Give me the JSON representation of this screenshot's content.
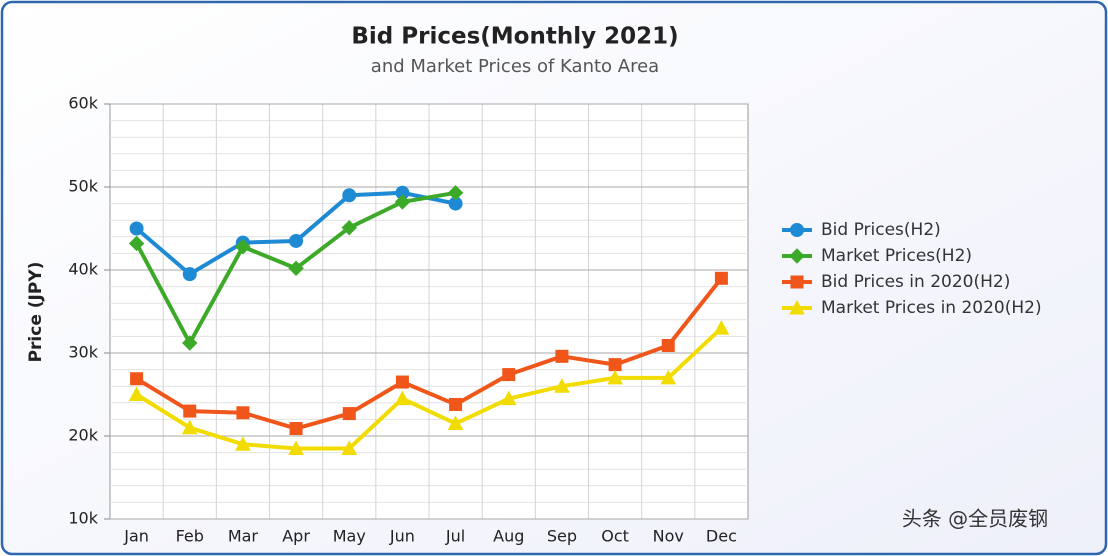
{
  "chart_data": {
    "type": "line",
    "title": "Bid Prices(Monthly 2021)",
    "subtitle": "and Market Prices of Kanto Area",
    "y_label": "Price (JPY)",
    "watermark": "头条 @全员废钢",
    "categories": [
      "Jan",
      "Feb",
      "Mar",
      "Apr",
      "May",
      "Jun",
      "Jul",
      "Aug",
      "Sep",
      "Oct",
      "Nov",
      "Dec"
    ],
    "series": [
      {
        "name": "Bid Prices(H2)",
        "color": "#1f8ad4",
        "marker": "circle",
        "values": [
          45000,
          39500,
          43300,
          43500,
          49000,
          49300,
          48000,
          null,
          null,
          null,
          null,
          null
        ]
      },
      {
        "name": "Market Prices(H2)",
        "color": "#3caa28",
        "marker": "diamond",
        "values": [
          43200,
          31200,
          42800,
          40200,
          45100,
          48200,
          49300,
          null,
          null,
          null,
          null,
          null
        ]
      },
      {
        "name": "Bid Prices in 2020(H2)",
        "color": "#f0561a",
        "marker": "square",
        "values": [
          26900,
          23000,
          22800,
          20900,
          22700,
          26500,
          23800,
          27400,
          29600,
          28600,
          30900,
          39000
        ]
      },
      {
        "name": "Market Prices in 2020(H2)",
        "color": "#f2dc00",
        "marker": "triangle",
        "values": [
          25000,
          21000,
          19000,
          18500,
          18500,
          24500,
          21500,
          24500,
          26000,
          27000,
          27000,
          33000
        ]
      }
    ],
    "ylim": [
      10000,
      60000
    ],
    "yticks": [
      {
        "value": 10000,
        "label": "10k"
      },
      {
        "value": 20000,
        "label": "20k"
      },
      {
        "value": 30000,
        "label": "30k"
      },
      {
        "value": 40000,
        "label": "40k"
      },
      {
        "value": 50000,
        "label": "50k"
      },
      {
        "value": 60000,
        "label": "60k"
      }
    ],
    "grid": true,
    "legend": "right"
  }
}
